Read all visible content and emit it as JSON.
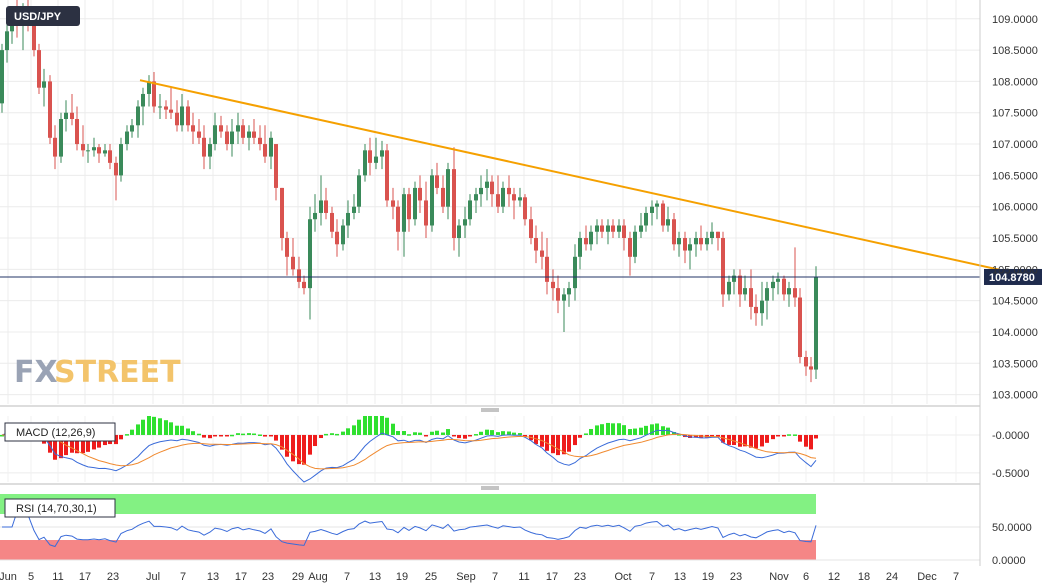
{
  "chart_data": {
    "type": "candlestick",
    "title": "USD/JPY",
    "watermark": {
      "part1": "FX",
      "part2": "STREET"
    },
    "colors": {
      "up": "#3a8a5a",
      "down": "#d9534f",
      "trend": "#f5a000",
      "price_line": "#223366",
      "price_tag": "#1f2b4d",
      "macd": "#3a6bd9",
      "signal": "#f08a30",
      "rsi": "#3a6bd9"
    },
    "last_price_label": "104.8780",
    "last_price": 104.878,
    "ylim": [
      102.85,
      109.3
    ],
    "y_ticks": [
      "109.0000",
      "108.5000",
      "108.0000",
      "107.5000",
      "107.0000",
      "106.5000",
      "106.0000",
      "105.5000",
      "105.0000",
      "104.5000",
      "104.0000",
      "103.5000",
      "103.0000"
    ],
    "y_tick_values": [
      109.0,
      108.5,
      108.0,
      107.5,
      107.0,
      106.5,
      106.0,
      105.5,
      105.0,
      104.5,
      104.0,
      103.5,
      103.0
    ],
    "x_ticks": [
      "Jun",
      "5",
      "11",
      "17",
      "23",
      "Jul",
      "7",
      "13",
      "17",
      "23",
      "29",
      "Aug",
      "7",
      "13",
      "19",
      "25",
      "Sep",
      "7",
      "11",
      "17",
      "23",
      "Oct",
      "7",
      "13",
      "19",
      "23",
      "Nov",
      "6",
      "12",
      "18",
      "24",
      "Dec",
      "7"
    ],
    "x_tick_pos": [
      8,
      31,
      58,
      85,
      113,
      153,
      183,
      213,
      241,
      268,
      298,
      318,
      347,
      375,
      402,
      431,
      466,
      495,
      524,
      552,
      580,
      623,
      652,
      680,
      708,
      736,
      779,
      806,
      834,
      864,
      892,
      927,
      956
    ],
    "trendline": {
      "from": {
        "x": 140,
        "y": 108.02
      },
      "to": {
        "x": 1040,
        "y": 104.85
      }
    },
    "candles": [
      [
        0,
        107.65,
        108.6,
        107.5,
        108.5
      ],
      [
        5,
        108.5,
        109.0,
        108.3,
        108.8
      ],
      [
        10,
        108.8,
        109.2,
        108.6,
        109.1
      ],
      [
        15,
        109.1,
        109.3,
        108.7,
        108.9
      ],
      [
        21,
        108.9,
        109.25,
        108.5,
        109.15
      ],
      [
        26,
        109.15,
        109.3,
        108.8,
        109.0
      ],
      [
        32,
        109.0,
        109.2,
        108.4,
        108.5
      ],
      [
        37,
        108.5,
        108.6,
        107.8,
        107.9
      ],
      [
        42,
        107.9,
        108.2,
        107.6,
        108.0
      ],
      [
        48,
        108.0,
        108.1,
        107.0,
        107.1
      ],
      [
        53,
        107.1,
        107.3,
        106.6,
        106.8
      ],
      [
        59,
        106.8,
        107.5,
        106.7,
        107.4
      ],
      [
        64,
        107.4,
        107.7,
        107.2,
        107.5
      ],
      [
        70,
        107.5,
        107.8,
        107.3,
        107.4
      ],
      [
        75,
        107.4,
        107.6,
        106.9,
        107.0
      ],
      [
        81,
        107.0,
        107.3,
        106.8,
        106.9
      ],
      [
        86,
        106.9,
        107.0,
        106.7,
        106.9
      ],
      [
        92,
        106.9,
        107.1,
        106.8,
        106.95
      ],
      [
        97,
        106.95,
        107.0,
        106.7,
        106.85
      ],
      [
        103,
        106.85,
        107.0,
        106.8,
        106.9
      ],
      [
        108,
        106.9,
        107.0,
        106.6,
        106.7
      ],
      [
        114,
        106.7,
        106.8,
        106.1,
        106.5
      ],
      [
        119,
        106.5,
        107.1,
        106.4,
        107.0
      ],
      [
        125,
        107.0,
        107.3,
        106.9,
        107.2
      ],
      [
        130,
        107.2,
        107.4,
        107.1,
        107.3
      ],
      [
        136,
        107.3,
        107.7,
        107.1,
        107.6
      ],
      [
        141,
        107.6,
        107.9,
        107.3,
        107.8
      ],
      [
        147,
        107.8,
        108.1,
        107.6,
        108.0
      ],
      [
        152,
        108.0,
        108.15,
        107.5,
        107.6
      ],
      [
        158,
        107.6,
        107.8,
        107.4,
        107.6
      ],
      [
        164,
        107.6,
        107.7,
        107.4,
        107.55
      ],
      [
        169,
        107.55,
        107.9,
        107.4,
        107.5
      ],
      [
        175,
        107.5,
        107.7,
        107.2,
        107.3
      ],
      [
        180,
        107.3,
        107.8,
        107.2,
        107.6
      ],
      [
        186,
        107.6,
        107.7,
        107.2,
        107.3
      ],
      [
        191,
        107.3,
        107.5,
        107.0,
        107.2
      ],
      [
        197,
        107.2,
        107.4,
        107.0,
        107.1
      ],
      [
        202,
        107.1,
        107.3,
        106.6,
        106.8
      ],
      [
        208,
        106.8,
        107.1,
        106.6,
        107.0
      ],
      [
        213,
        107.0,
        107.5,
        106.9,
        107.3
      ],
      [
        219,
        107.3,
        107.45,
        107.1,
        107.2
      ],
      [
        225,
        107.2,
        107.3,
        106.9,
        107.0
      ],
      [
        230,
        107.0,
        107.4,
        106.8,
        107.2
      ],
      [
        236,
        107.2,
        107.5,
        107.0,
        107.3
      ],
      [
        241,
        107.3,
        107.4,
        107.0,
        107.1
      ],
      [
        247,
        107.1,
        107.3,
        106.9,
        107.2
      ],
      [
        252,
        107.2,
        107.4,
        107.0,
        107.1
      ],
      [
        258,
        107.1,
        107.3,
        106.9,
        107.0
      ],
      [
        263,
        107.0,
        107.3,
        106.7,
        106.8
      ],
      [
        269,
        106.8,
        107.2,
        106.6,
        107.1
      ],
      [
        274,
        107.0,
        107.0,
        106.1,
        106.3
      ],
      [
        280,
        106.3,
        106.3,
        105.3,
        105.5
      ],
      [
        285,
        105.5,
        105.6,
        104.9,
        105.2
      ],
      [
        291,
        105.2,
        105.5,
        104.9,
        105.0
      ],
      [
        297,
        105.0,
        105.2,
        104.7,
        104.8
      ],
      [
        302,
        104.8,
        104.9,
        104.6,
        104.7
      ],
      [
        308,
        104.7,
        106.0,
        104.2,
        105.8
      ],
      [
        313,
        105.8,
        106.2,
        105.6,
        105.9
      ],
      [
        319,
        105.9,
        106.5,
        105.7,
        106.1
      ],
      [
        324,
        106.1,
        106.3,
        105.8,
        105.9
      ],
      [
        330,
        105.9,
        106.0,
        105.5,
        105.6
      ],
      [
        335,
        105.6,
        105.8,
        105.2,
        105.4
      ],
      [
        341,
        105.4,
        105.8,
        105.3,
        105.7
      ],
      [
        346,
        105.7,
        106.1,
        105.5,
        105.9
      ],
      [
        352,
        105.9,
        106.2,
        105.8,
        106.0
      ],
      [
        357,
        106.0,
        106.6,
        105.9,
        106.5
      ],
      [
        363,
        106.5,
        107.0,
        106.4,
        106.9
      ],
      [
        368,
        106.9,
        107.1,
        106.5,
        106.7
      ],
      [
        374,
        106.7,
        107.1,
        106.6,
        106.8
      ],
      [
        380,
        106.8,
        107.05,
        106.6,
        106.9
      ],
      [
        385,
        106.9,
        107.0,
        106.0,
        106.1
      ],
      [
        391,
        106.1,
        106.3,
        105.8,
        106.0
      ],
      [
        396,
        106.0,
        106.1,
        105.3,
        105.6
      ],
      [
        402,
        105.6,
        106.3,
        105.2,
        106.2
      ],
      [
        407,
        106.2,
        106.3,
        105.6,
        105.8
      ],
      [
        413,
        105.8,
        106.4,
        105.7,
        106.3
      ],
      [
        418,
        106.3,
        106.5,
        105.9,
        106.1
      ],
      [
        424,
        106.1,
        106.4,
        105.5,
        105.7
      ],
      [
        430,
        105.7,
        106.6,
        105.6,
        106.5
      ],
      [
        435,
        106.5,
        106.7,
        106.2,
        106.3
      ],
      [
        441,
        106.3,
        106.5,
        105.9,
        106.0
      ],
      [
        446,
        106.0,
        106.7,
        105.8,
        106.6
      ],
      [
        452,
        106.6,
        106.95,
        105.3,
        105.5
      ],
      [
        457,
        105.5,
        105.8,
        105.2,
        105.7
      ],
      [
        463,
        105.7,
        106.0,
        105.5,
        105.8
      ],
      [
        468,
        105.8,
        106.2,
        105.7,
        106.1
      ],
      [
        474,
        106.1,
        106.3,
        105.9,
        106.2
      ],
      [
        479,
        106.2,
        106.5,
        106.0,
        106.3
      ],
      [
        485,
        106.3,
        106.6,
        106.1,
        106.4
      ],
      [
        490,
        106.4,
        106.5,
        106.0,
        106.2
      ],
      [
        496,
        106.2,
        106.5,
        105.9,
        106.0
      ],
      [
        501,
        106.0,
        106.4,
        105.9,
        106.3
      ],
      [
        507,
        106.3,
        106.5,
        106.0,
        106.2
      ],
      [
        512,
        106.2,
        106.3,
        105.8,
        106.1
      ],
      [
        518,
        106.1,
        106.3,
        106.0,
        106.15
      ],
      [
        523,
        106.15,
        106.2,
        105.7,
        105.8
      ],
      [
        529,
        105.8,
        106.0,
        105.4,
        105.5
      ],
      [
        534,
        105.5,
        105.7,
        105.1,
        105.3
      ],
      [
        540,
        105.3,
        105.6,
        105.0,
        105.2
      ],
      [
        545,
        105.2,
        105.5,
        104.6,
        104.8
      ],
      [
        551,
        104.8,
        105.0,
        104.5,
        104.7
      ],
      [
        556,
        104.7,
        104.9,
        104.3,
        104.5
      ],
      [
        562,
        104.5,
        104.7,
        104.0,
        104.6
      ],
      [
        567,
        104.6,
        104.8,
        104.4,
        104.7
      ],
      [
        573,
        104.7,
        105.4,
        104.5,
        105.2
      ],
      [
        578,
        105.2,
        105.6,
        105.0,
        105.5
      ],
      [
        584,
        105.5,
        105.7,
        105.3,
        105.4
      ],
      [
        589,
        105.4,
        105.7,
        105.3,
        105.6
      ],
      [
        595,
        105.6,
        105.8,
        105.4,
        105.7
      ],
      [
        600,
        105.7,
        105.8,
        105.5,
        105.6
      ],
      [
        606,
        105.6,
        105.8,
        105.4,
        105.7
      ],
      [
        611,
        105.7,
        105.8,
        105.5,
        105.6
      ],
      [
        617,
        105.6,
        105.8,
        105.5,
        105.7
      ],
      [
        622,
        105.7,
        105.8,
        105.3,
        105.5
      ],
      [
        628,
        105.5,
        105.6,
        104.9,
        105.2
      ],
      [
        633,
        105.2,
        105.7,
        105.1,
        105.6
      ],
      [
        639,
        105.6,
        105.9,
        105.5,
        105.7
      ],
      [
        644,
        105.7,
        106.0,
        105.6,
        105.9
      ],
      [
        650,
        105.9,
        106.1,
        105.7,
        106.0
      ],
      [
        655,
        106.0,
        106.1,
        105.8,
        106.05
      ],
      [
        661,
        106.05,
        106.1,
        105.6,
        105.7
      ],
      [
        666,
        105.7,
        106.0,
        105.6,
        105.8
      ],
      [
        672,
        105.8,
        105.9,
        105.3,
        105.4
      ],
      [
        677,
        105.4,
        105.6,
        105.2,
        105.5
      ],
      [
        683,
        105.5,
        105.6,
        105.1,
        105.3
      ],
      [
        688,
        105.3,
        105.5,
        105.0,
        105.4
      ],
      [
        694,
        105.4,
        105.6,
        105.2,
        105.5
      ],
      [
        699,
        105.5,
        105.7,
        105.3,
        105.4
      ],
      [
        705,
        105.4,
        105.6,
        105.3,
        105.5
      ],
      [
        710,
        105.5,
        105.75,
        105.4,
        105.6
      ],
      [
        716,
        105.6,
        105.6,
        105.3,
        105.5
      ],
      [
        721,
        105.5,
        105.6,
        104.4,
        104.6
      ],
      [
        727,
        104.6,
        104.9,
        104.5,
        104.8
      ],
      [
        732,
        104.8,
        105.0,
        104.6,
        104.9
      ],
      [
        738,
        104.9,
        105.0,
        104.4,
        104.6
      ],
      [
        743,
        104.6,
        104.9,
        104.5,
        104.7
      ],
      [
        749,
        104.7,
        105.0,
        104.2,
        104.4
      ],
      [
        754,
        104.4,
        104.6,
        104.1,
        104.3
      ],
      [
        760,
        104.3,
        104.8,
        104.1,
        104.5
      ],
      [
        765,
        104.5,
        104.8,
        104.2,
        104.7
      ],
      [
        771,
        104.7,
        104.9,
        104.5,
        104.8
      ],
      [
        776,
        104.8,
        104.95,
        104.6,
        104.85
      ],
      [
        782,
        104.85,
        104.9,
        104.5,
        104.6
      ],
      [
        787,
        104.6,
        104.8,
        104.4,
        104.7
      ],
      [
        793,
        104.7,
        105.35,
        104.4,
        104.55
      ],
      [
        798,
        104.55,
        104.7,
        103.5,
        103.6
      ],
      [
        804,
        103.6,
        103.7,
        103.3,
        103.45
      ],
      [
        809,
        103.45,
        103.6,
        103.2,
        103.4
      ],
      [
        814,
        103.4,
        105.05,
        103.25,
        104.88
      ]
    ],
    "macd": {
      "label": "MACD (12,26,9)",
      "y_ticks": [
        "-0.0000",
        "-0.5000"
      ],
      "y_tick_values": [
        0.0,
        -0.5
      ],
      "ylim": [
        -0.62,
        0.25
      ]
    },
    "rsi": {
      "label": "RSI (14,70,30,1)",
      "y_ticks": [
        "50.0000",
        "0.0000"
      ],
      "y_tick_values": [
        50,
        0
      ],
      "ylim": [
        0,
        100
      ],
      "overbought": 70,
      "oversold": 30
    }
  }
}
